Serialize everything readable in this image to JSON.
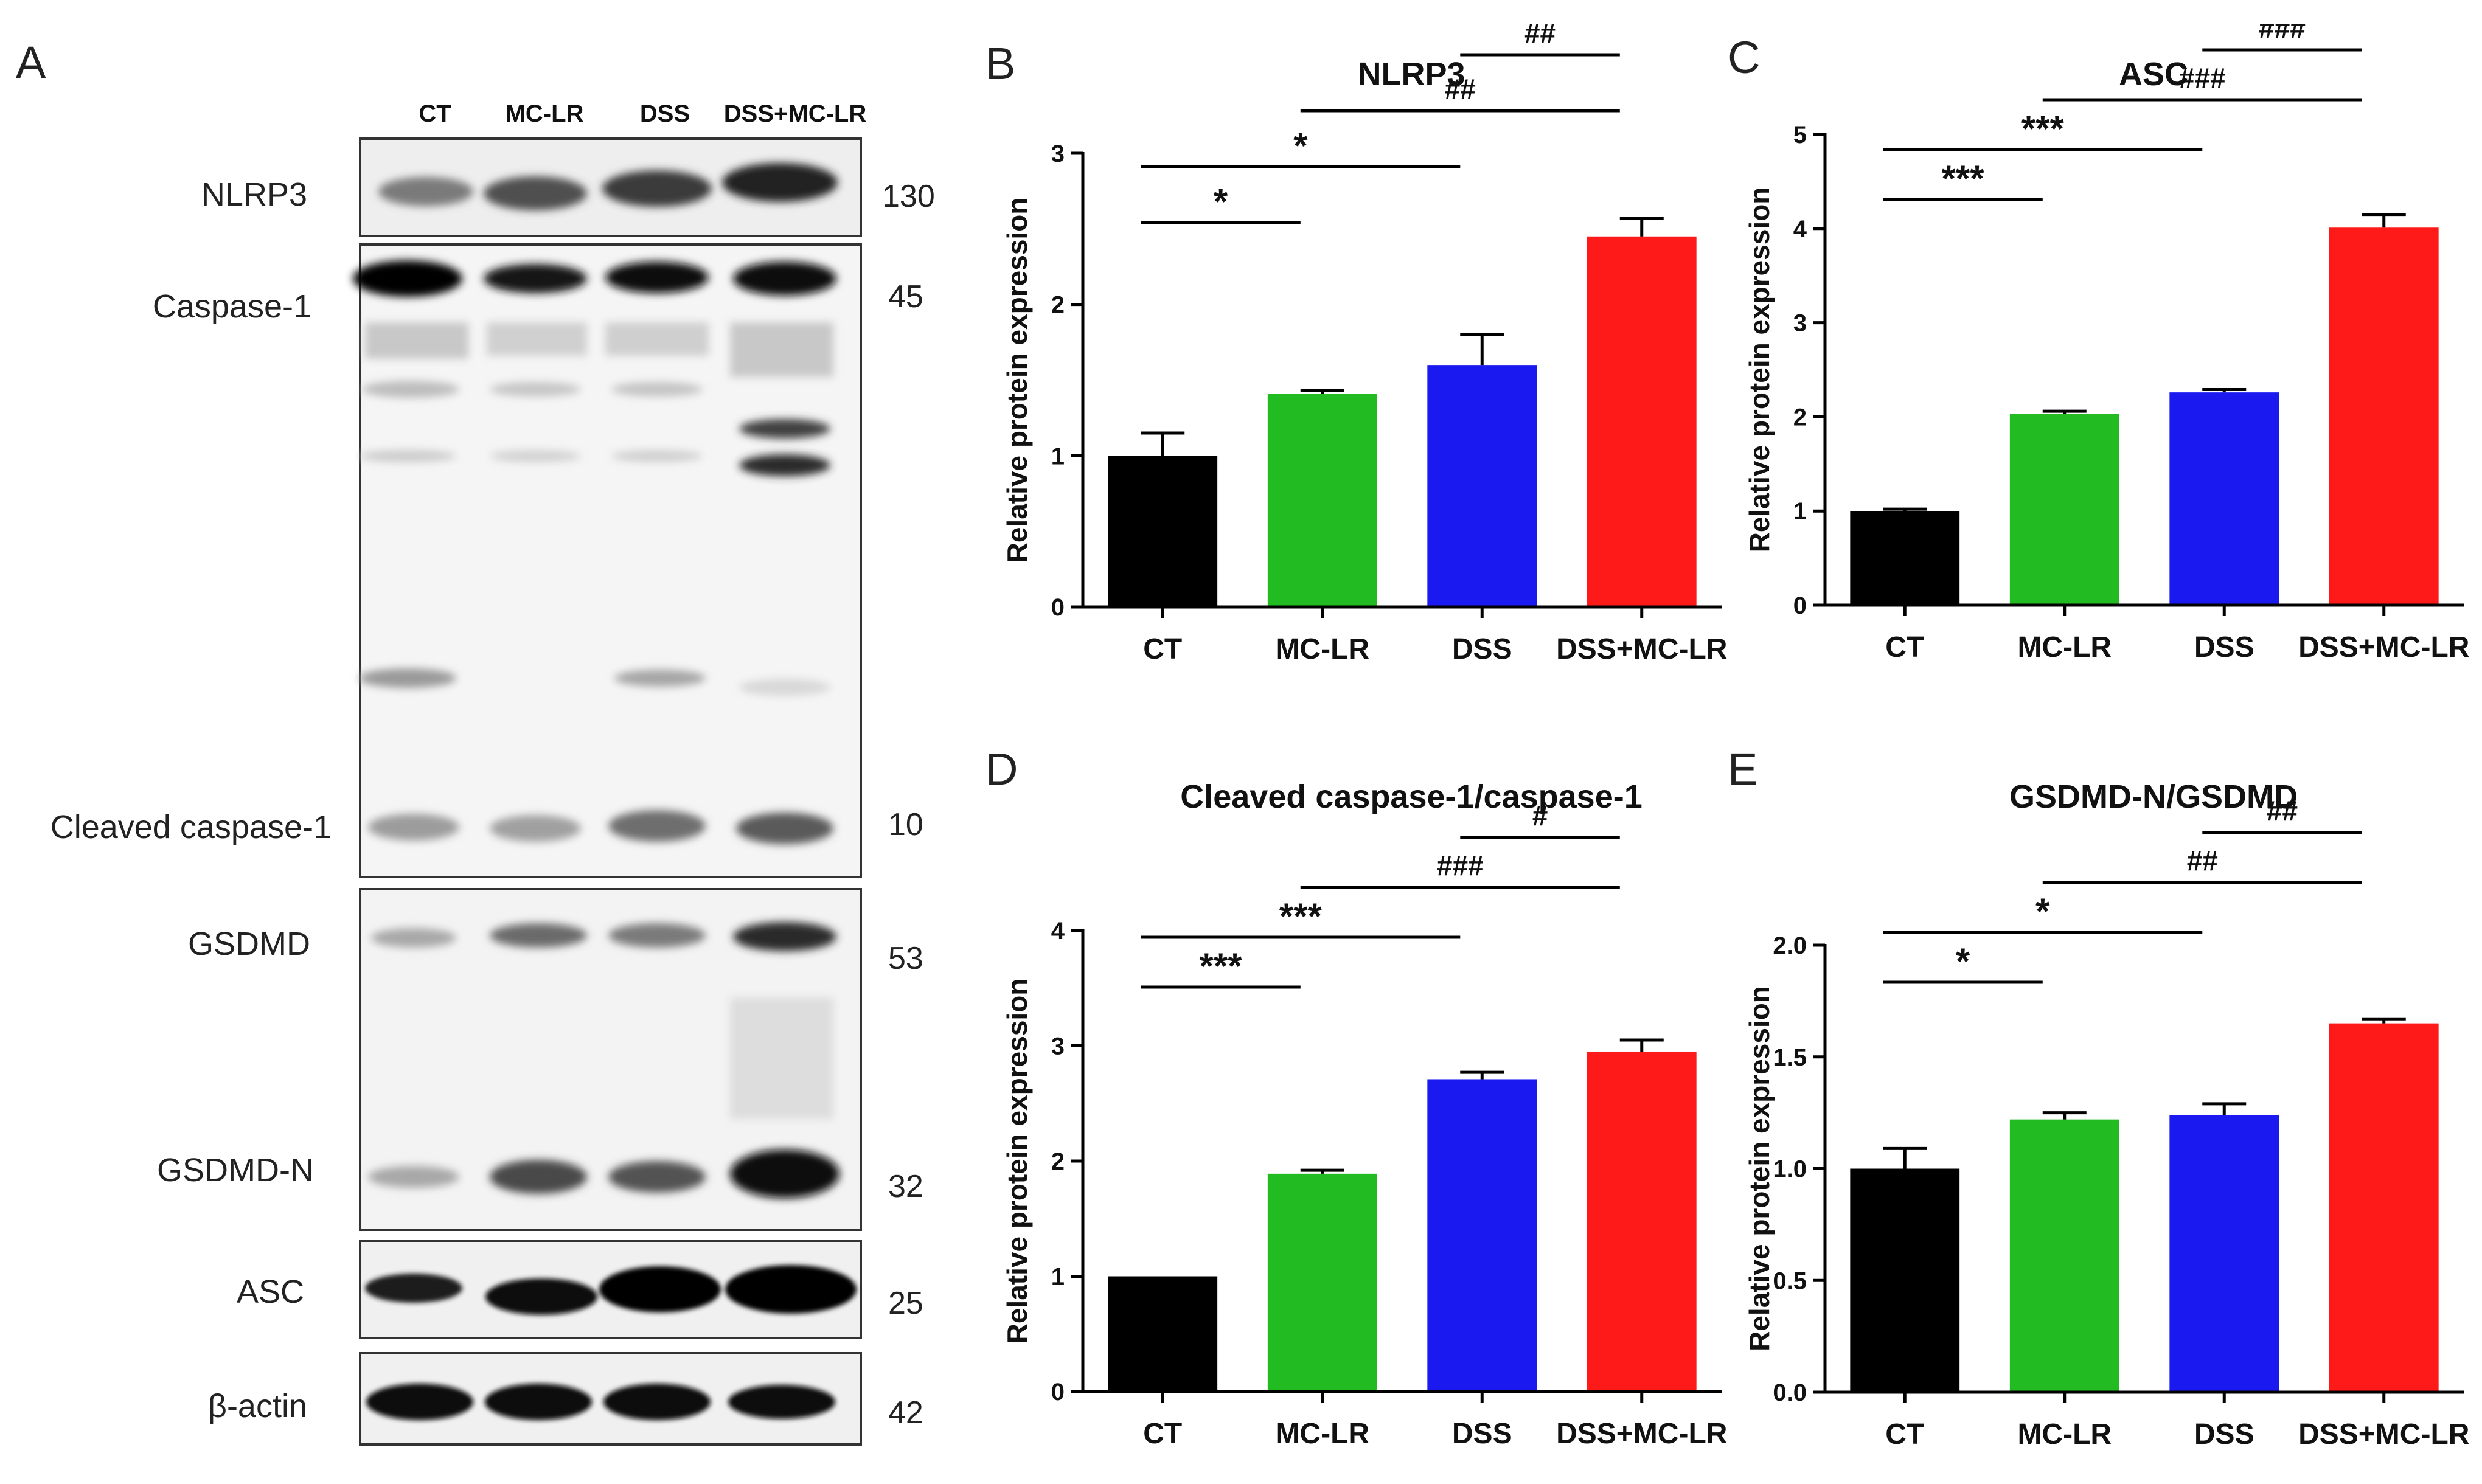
{
  "panel_letters": {
    "a": "A",
    "b": "B",
    "c": "C",
    "d": "D",
    "e": "E"
  },
  "western_blot": {
    "lanes": [
      "CT",
      "MC-LR",
      "DSS",
      "DSS+MC-LR"
    ],
    "labels": {
      "nlrp3": "NLRP3",
      "caspase1": "Caspase-1",
      "cleaved_caspase1": "Cleaved caspase-1",
      "gsdmd": "GSDMD",
      "gsdmd_n": "GSDMD-N",
      "asc": "ASC",
      "actin": "β-actin"
    },
    "sizes": {
      "nlrp3": "130",
      "caspase1": "45",
      "cleaved_caspase1": "10",
      "gsdmd": "53",
      "gsdmd_n": "32",
      "asc": "25",
      "actin": "42"
    }
  },
  "chart_data": [
    {
      "panel": "B",
      "type": "bar",
      "title": "NLRP3",
      "xlabel": "",
      "ylabel": "Relative protein expression",
      "categories": [
        "CT",
        "MC-LR",
        "DSS",
        "DSS+MC-LR"
      ],
      "values": [
        1.0,
        1.41,
        1.6,
        2.45
      ],
      "errors": [
        0.15,
        0.02,
        0.2,
        0.12
      ],
      "colors": [
        "#000000",
        "#22bb22",
        "#1a1af0",
        "#ff1a1a"
      ],
      "ylim": [
        0,
        3
      ],
      "yticks": [
        "0",
        "1",
        "2",
        "3"
      ],
      "annotations": [
        {
          "from": 0,
          "to": 1,
          "text": "*"
        },
        {
          "from": 0,
          "to": 2,
          "text": "*"
        },
        {
          "from": 1,
          "to": 3,
          "text": "##"
        },
        {
          "from": 2,
          "to": 3,
          "text": "##"
        }
      ]
    },
    {
      "panel": "C",
      "type": "bar",
      "title": "ASC",
      "xlabel": "",
      "ylabel": "Relative protein expression",
      "categories": [
        "CT",
        "MC-LR",
        "DSS",
        "DSS+MC-LR"
      ],
      "values": [
        1.0,
        2.03,
        2.26,
        4.01
      ],
      "errors": [
        0.02,
        0.03,
        0.03,
        0.14
      ],
      "colors": [
        "#000000",
        "#22bb22",
        "#1a1af0",
        "#ff1a1a"
      ],
      "ylim": [
        0,
        5
      ],
      "yticks": [
        "0",
        "1",
        "2",
        "3",
        "4",
        "5"
      ],
      "annotations": [
        {
          "from": 0,
          "to": 1,
          "text": "***"
        },
        {
          "from": 0,
          "to": 2,
          "text": "***"
        },
        {
          "from": 1,
          "to": 3,
          "text": "###"
        },
        {
          "from": 2,
          "to": 3,
          "text": "###"
        }
      ]
    },
    {
      "panel": "D",
      "type": "bar",
      "title": "Cleaved caspase-1/caspase-1",
      "xlabel": "",
      "ylabel": "Relative protein expression",
      "categories": [
        "CT",
        "MC-LR",
        "DSS",
        "DSS+MC-LR"
      ],
      "values": [
        1.0,
        1.89,
        2.71,
        2.95
      ],
      "errors": [
        0.0,
        0.03,
        0.06,
        0.1
      ],
      "colors": [
        "#000000",
        "#22bb22",
        "#1a1af0",
        "#ff1a1a"
      ],
      "ylim": [
        0,
        4
      ],
      "yticks": [
        "0",
        "1",
        "2",
        "3",
        "4"
      ],
      "annotations": [
        {
          "from": 0,
          "to": 1,
          "text": "***"
        },
        {
          "from": 0,
          "to": 2,
          "text": "***"
        },
        {
          "from": 1,
          "to": 3,
          "text": "###"
        },
        {
          "from": 2,
          "to": 3,
          "text": "#"
        }
      ]
    },
    {
      "panel": "E",
      "type": "bar",
      "title": "GSDMD-N/GSDMD",
      "xlabel": "",
      "ylabel": "Relative protein expression",
      "categories": [
        "CT",
        "MC-LR",
        "DSS",
        "DSS+MC-LR"
      ],
      "values": [
        1.0,
        1.22,
        1.24,
        1.65
      ],
      "errors": [
        0.09,
        0.03,
        0.05,
        0.02
      ],
      "colors": [
        "#000000",
        "#22bb22",
        "#1a1af0",
        "#ff1a1a"
      ],
      "ylim": [
        0,
        2.0
      ],
      "yticks": [
        "0.0",
        "0.5",
        "1.0",
        "1.5",
        "2.0"
      ],
      "annotations": [
        {
          "from": 0,
          "to": 1,
          "text": "*"
        },
        {
          "from": 0,
          "to": 2,
          "text": "*"
        },
        {
          "from": 1,
          "to": 3,
          "text": "##"
        },
        {
          "from": 2,
          "to": 3,
          "text": "##"
        }
      ]
    }
  ]
}
